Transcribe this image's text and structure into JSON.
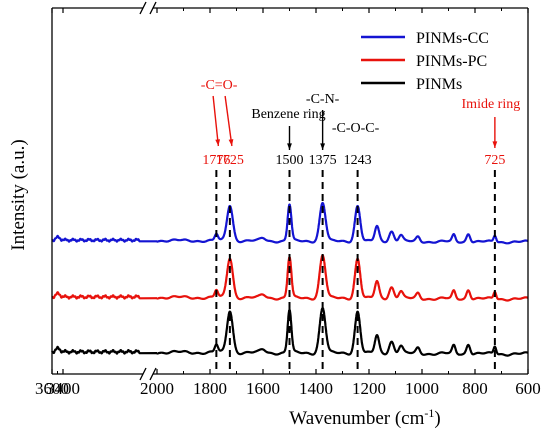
{
  "chart_data": {
    "type": "line",
    "xlabel": "Wavenumber (cm",
    "xlabel_sup": "-1",
    "xlabel_close": ")",
    "ylabel": "Intensity (a.u.)",
    "x_axis_reversed": true,
    "x_axis_broken": true,
    "x_segments": [
      {
        "range": [
          3600,
          2000
        ],
        "ticks": [
          "3600",
          "3400",
          "2000"
        ]
      },
      {
        "range": [
          2000,
          600
        ],
        "ticks": [
          "1800",
          "1600",
          "1400",
          "1200",
          "1000",
          "800",
          "600"
        ]
      }
    ],
    "legend_position": "top-right",
    "series": [
      {
        "name": "PINMs-CC",
        "color": "#1414d2",
        "offset": 2,
        "scale": 0.85
      },
      {
        "name": "PINMs-PC",
        "color": "#e8120c",
        "offset": 1,
        "scale": 0.95
      },
      {
        "name": "PINMs",
        "color": "#000000",
        "offset": 0,
        "scale": 1.0
      }
    ],
    "peaks": [
      {
        "x": 1776,
        "h": 0.35,
        "w": 6
      },
      {
        "x": 1725,
        "h": 1.9,
        "w": 11
      },
      {
        "x": 1500,
        "h": 1.95,
        "w": 7
      },
      {
        "x": 1375,
        "h": 2.05,
        "w": 11
      },
      {
        "x": 1243,
        "h": 1.9,
        "w": 10
      },
      {
        "x": 1170,
        "h": 0.8,
        "w": 8
      },
      {
        "x": 1115,
        "h": 0.55,
        "w": 9
      },
      {
        "x": 1080,
        "h": 0.35,
        "w": 8
      },
      {
        "x": 1015,
        "h": 0.25,
        "w": 7
      },
      {
        "x": 880,
        "h": 0.35,
        "w": 6
      },
      {
        "x": 825,
        "h": 0.45,
        "w": 7
      },
      {
        "x": 725,
        "h": 0.35,
        "w": 5
      },
      {
        "x": 1600,
        "h": 0.15,
        "w": 10
      },
      {
        "x": 3490,
        "h": 0.15,
        "w": 40
      }
    ],
    "peak_markers": [
      {
        "x": 1776,
        "label": "1776",
        "color": "red"
      },
      {
        "x": 1725,
        "label": "1725",
        "color": "red"
      },
      {
        "x": 1500,
        "label": "1500",
        "color": "black"
      },
      {
        "x": 1375,
        "label": "1375",
        "color": "black"
      },
      {
        "x": 1243,
        "label": "1243",
        "color": "black"
      },
      {
        "x": 725,
        "label": "725",
        "color": "red"
      }
    ],
    "group_labels": [
      {
        "text": "-C=O-",
        "color": "red"
      },
      {
        "text": "Benzene ring",
        "color": "black"
      },
      {
        "text": "-C-N-",
        "color": "black"
      },
      {
        "text": "-C-O-C-",
        "color": "black"
      },
      {
        "text": "Imide ring",
        "color": "red"
      }
    ]
  }
}
